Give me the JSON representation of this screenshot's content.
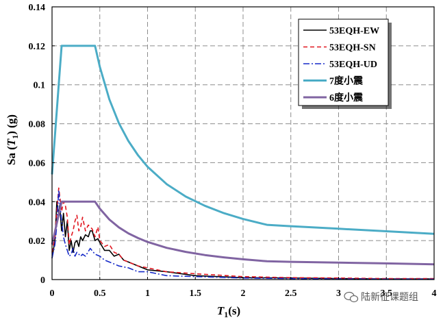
{
  "chart_data": {
    "type": "line",
    "ylabel_main": "Sa (",
    "ylabel_var": "T",
    "ylabel_sub": "1",
    "ylabel_tail": ") (g)",
    "xlabel_var": "T",
    "xlabel_sub": "1",
    "xlabel_tail": "(s)",
    "xlim": [
      0,
      4
    ],
    "ylim": [
      0,
      0.14
    ],
    "x_ticks": [
      0,
      0.5,
      1,
      1.5,
      2,
      2.5,
      3,
      3.5,
      4
    ],
    "x_tick_labels": [
      "0",
      "0.5",
      "1",
      "1.5",
      "2",
      "2.5",
      "3",
      "3.5",
      "4"
    ],
    "y_ticks": [
      0,
      0.02,
      0.04,
      0.06,
      0.08,
      0.1,
      0.12,
      0.14
    ],
    "y_tick_labels": [
      "0",
      "0.02",
      "0.04",
      "0.06",
      "0.08",
      "0.1",
      "0.12",
      "0.14"
    ],
    "grid": true,
    "legend_position": "top-right",
    "series": [
      {
        "name": "53EQH-EW",
        "color": "#000000",
        "style": "solid",
        "x": [
          0.0,
          0.03,
          0.05,
          0.07,
          0.08,
          0.1,
          0.12,
          0.14,
          0.16,
          0.18,
          0.2,
          0.22,
          0.24,
          0.26,
          0.28,
          0.3,
          0.32,
          0.35,
          0.38,
          0.4,
          0.42,
          0.45,
          0.48,
          0.5,
          0.55,
          0.6,
          0.65,
          0.7,
          0.75,
          0.8,
          0.9,
          1.0,
          1.2,
          1.5,
          2.0,
          2.5,
          3.0,
          3.5,
          4.0
        ],
        "y": [
          0.011,
          0.02,
          0.04,
          0.033,
          0.038,
          0.025,
          0.034,
          0.022,
          0.03,
          0.015,
          0.02,
          0.014,
          0.019,
          0.02,
          0.017,
          0.022,
          0.02,
          0.023,
          0.022,
          0.025,
          0.025,
          0.02,
          0.021,
          0.019,
          0.015,
          0.015,
          0.012,
          0.013,
          0.01,
          0.009,
          0.007,
          0.005,
          0.004,
          0.002,
          0.001,
          0.0008,
          0.0005,
          0.0003,
          0.0003
        ]
      },
      {
        "name": "53EQH-SN",
        "color": "#e0141e",
        "style": "dashed",
        "x": [
          0.0,
          0.03,
          0.05,
          0.07,
          0.08,
          0.1,
          0.12,
          0.14,
          0.16,
          0.18,
          0.2,
          0.22,
          0.24,
          0.26,
          0.28,
          0.3,
          0.32,
          0.35,
          0.38,
          0.4,
          0.42,
          0.45,
          0.48,
          0.5,
          0.55,
          0.6,
          0.65,
          0.7,
          0.75,
          0.8,
          0.9,
          1.0,
          1.2,
          1.5,
          2.0,
          2.5,
          3.0,
          3.5,
          4.0
        ],
        "y": [
          0.014,
          0.022,
          0.035,
          0.047,
          0.043,
          0.035,
          0.04,
          0.038,
          0.032,
          0.018,
          0.022,
          0.025,
          0.03,
          0.033,
          0.025,
          0.027,
          0.032,
          0.025,
          0.028,
          0.027,
          0.026,
          0.022,
          0.027,
          0.02,
          0.017,
          0.018,
          0.014,
          0.013,
          0.01,
          0.009,
          0.007,
          0.006,
          0.004,
          0.003,
          0.0015,
          0.001,
          0.0008,
          0.0005,
          0.0005
        ]
      },
      {
        "name": "53EQH-UD",
        "color": "#1428c8",
        "style": "dashdot",
        "x": [
          0.0,
          0.03,
          0.05,
          0.07,
          0.08,
          0.1,
          0.12,
          0.14,
          0.16,
          0.18,
          0.2,
          0.22,
          0.24,
          0.26,
          0.28,
          0.3,
          0.32,
          0.35,
          0.4,
          0.45,
          0.5,
          0.55,
          0.6,
          0.7,
          0.8,
          0.9,
          1.0,
          1.2,
          1.5,
          2.0,
          2.5,
          3.0,
          3.5,
          4.0
        ],
        "y": [
          0.011,
          0.018,
          0.028,
          0.046,
          0.04,
          0.03,
          0.022,
          0.018,
          0.015,
          0.012,
          0.013,
          0.016,
          0.012,
          0.014,
          0.013,
          0.012,
          0.013,
          0.012,
          0.016,
          0.013,
          0.012,
          0.01,
          0.009,
          0.007,
          0.006,
          0.004,
          0.004,
          0.002,
          0.0015,
          0.0008,
          0.0005,
          0.0003,
          0.0002,
          0.0002
        ]
      },
      {
        "name": "7度小震",
        "color": "#4bacc6",
        "style": "solid",
        "x": [
          0.0,
          0.1,
          0.45,
          0.5,
          0.6,
          0.7,
          0.8,
          0.9,
          1.0,
          1.2,
          1.4,
          1.6,
          1.8,
          2.0,
          2.2,
          2.25,
          2.5,
          3.0,
          3.5,
          4.0
        ],
        "y": [
          0.054,
          0.12,
          0.12,
          0.1092,
          0.0925,
          0.0803,
          0.0711,
          0.0638,
          0.0579,
          0.049,
          0.0426,
          0.0379,
          0.0341,
          0.0311,
          0.0287,
          0.0281,
          0.0274,
          0.0261,
          0.0248,
          0.0235
        ]
      },
      {
        "name": "6度小震",
        "color": "#8064a2",
        "style": "solid",
        "x": [
          0.0,
          0.1,
          0.45,
          0.5,
          0.6,
          0.7,
          0.8,
          0.9,
          1.0,
          1.2,
          1.4,
          1.6,
          1.8,
          2.0,
          2.2,
          2.25,
          2.5,
          3.0,
          3.5,
          4.0
        ],
        "y": [
          0.018,
          0.04,
          0.04,
          0.0364,
          0.0308,
          0.0268,
          0.0237,
          0.0213,
          0.0193,
          0.0163,
          0.0142,
          0.0126,
          0.0114,
          0.0104,
          0.0096,
          0.0094,
          0.0091,
          0.0087,
          0.0083,
          0.0078
        ]
      }
    ]
  },
  "watermark": {
    "text": "陆新征课题组",
    "icon": "wechat-icon"
  }
}
